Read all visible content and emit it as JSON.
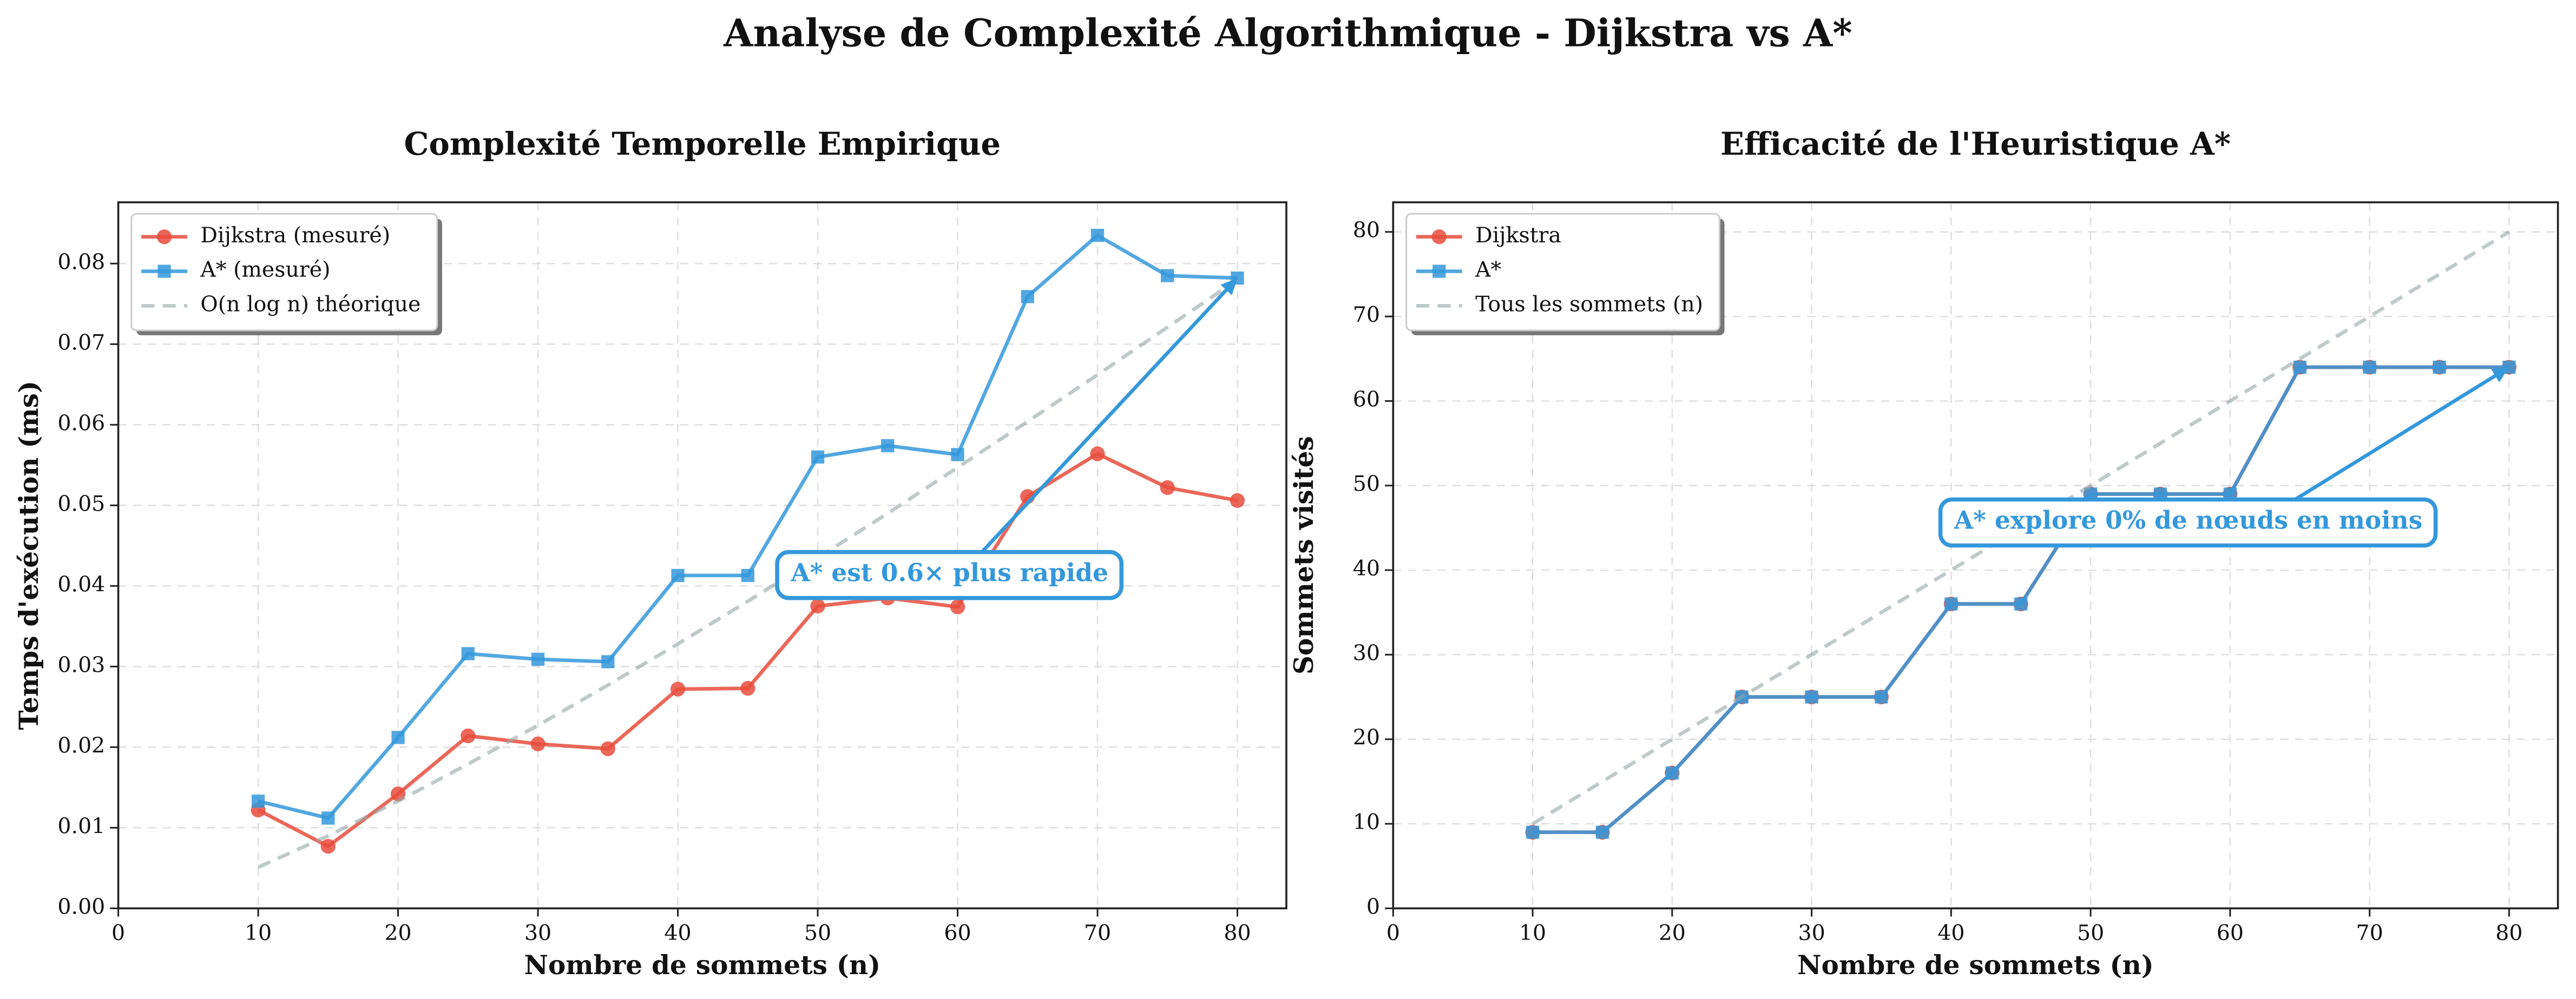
{
  "title": "Analyse de Complexité Algorithmique - Dijkstra vs A*",
  "chart_data": [
    {
      "type": "line",
      "title": "Complexité Temporelle Empirique",
      "xlabel": "Nombre de sommets (n)",
      "ylabel": "Temps d'exécution (ms)",
      "x": [
        10,
        15,
        20,
        25,
        30,
        35,
        40,
        45,
        50,
        55,
        60,
        65,
        70,
        75,
        80
      ],
      "series": [
        {
          "name": "Dijkstra (mesuré)",
          "color": "#e74c3c",
          "marker": "circle",
          "values": [
            0.0122,
            0.0077,
            0.0142,
            0.0214,
            0.0204,
            0.0198,
            0.0272,
            0.0273,
            0.0375,
            0.0385,
            0.0374,
            0.0511,
            0.0564,
            0.0522,
            0.0506
          ]
        },
        {
          "name": "A* (mesuré)",
          "color": "#3498db",
          "marker": "square",
          "values": [
            0.0133,
            0.0112,
            0.0212,
            0.0316,
            0.0309,
            0.0306,
            0.0413,
            0.0413,
            0.056,
            0.0574,
            0.0563,
            0.0759,
            0.0835,
            0.0785,
            0.0782
          ]
        },
        {
          "name": "O(n log n) théorique",
          "color": "#95a5a6",
          "dashed": true,
          "values": [
            0.0051,
            0.009,
            0.0133,
            0.0179,
            0.0227,
            0.0277,
            0.0328,
            0.0381,
            0.0435,
            0.049,
            0.0547,
            0.0604,
            0.0662,
            0.0721,
            0.078
          ]
        }
      ],
      "xlim": [
        0,
        83.5
      ],
      "ylim": [
        0,
        0.0876
      ],
      "xticks": [
        0,
        10,
        20,
        30,
        40,
        50,
        60,
        70,
        80
      ],
      "yticks": [
        {
          "value": 0,
          "label": "0.00"
        },
        {
          "value": 0.01,
          "label": "0.01"
        },
        {
          "value": 0.02,
          "label": "0.02"
        },
        {
          "value": 0.03,
          "label": "0.03"
        },
        {
          "value": 0.04,
          "label": "0.04"
        },
        {
          "value": 0.05,
          "label": "0.05"
        },
        {
          "value": 0.06,
          "label": "0.06"
        },
        {
          "value": 0.07,
          "label": "0.07"
        },
        {
          "value": 0.08,
          "label": "0.08"
        }
      ],
      "grid": true,
      "legend": "upper left",
      "annotation": "A* est 0.6× plus rapide"
    },
    {
      "type": "line",
      "title": "Efficacité de l'Heuristique A*",
      "xlabel": "Nombre de sommets (n)",
      "ylabel": "Sommets visités",
      "x": [
        10,
        15,
        20,
        25,
        30,
        35,
        40,
        45,
        50,
        55,
        60,
        65,
        70,
        75,
        80
      ],
      "series": [
        {
          "name": "Dijkstra",
          "color": "#e74c3c",
          "marker": "circle",
          "values": [
            9,
            9,
            16,
            25,
            25,
            25,
            36,
            36,
            49,
            49,
            49,
            64,
            64,
            64,
            64
          ]
        },
        {
          "name": "A*",
          "color": "#3498db",
          "marker": "square",
          "values": [
            9,
            9,
            16,
            25,
            25,
            25,
            36,
            36,
            49,
            49,
            49,
            64,
            64,
            64,
            64
          ]
        },
        {
          "name": "Tous les sommets (n)",
          "color": "#95a5a6",
          "dashed": true,
          "values": [
            10,
            15,
            20,
            25,
            30,
            35,
            40,
            45,
            50,
            55,
            60,
            65,
            70,
            75,
            80
          ]
        }
      ],
      "xlim": [
        0,
        83.5
      ],
      "ylim": [
        0,
        83.5
      ],
      "xticks": [
        0,
        10,
        20,
        30,
        40,
        50,
        60,
        70,
        80
      ],
      "yticks": [
        0,
        10,
        20,
        30,
        40,
        50,
        60,
        70,
        80
      ],
      "grid": true,
      "legend": "upper left",
      "annotation": "A* explore 0% de nœuds en moins"
    }
  ]
}
